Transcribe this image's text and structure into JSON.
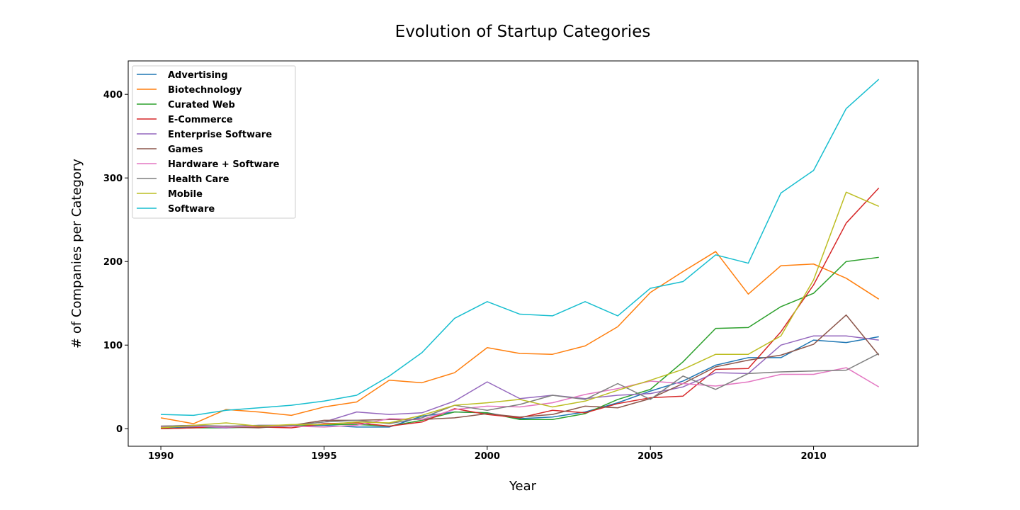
{
  "chart_data": {
    "type": "line",
    "title": "Evolution of Startup Categories",
    "xlabel": "Year",
    "ylabel": "# of Companies per Category",
    "xlim": [
      1989,
      2013.2
    ],
    "ylim": [
      -21,
      440
    ],
    "x_ticks": [
      1990,
      1995,
      2000,
      2005,
      2010
    ],
    "y_ticks": [
      0,
      100,
      200,
      300,
      400
    ],
    "grid": false,
    "legend_position": "top-left",
    "x": [
      1990,
      1991,
      1992,
      1993,
      1994,
      1995,
      1996,
      1997,
      1998,
      1999,
      2000,
      2001,
      2002,
      2003,
      2004,
      2005,
      2006,
      2007,
      2008,
      2009,
      2010,
      2011,
      2012
    ],
    "series": [
      {
        "name": "Advertising",
        "color": "#1f77b4",
        "values": [
          1,
          2,
          3,
          2,
          3,
          4,
          2,
          2,
          15,
          20,
          19,
          12,
          14,
          20,
          31,
          45,
          57,
          76,
          85,
          85,
          106,
          103,
          110
        ]
      },
      {
        "name": "Biotechnology",
        "color": "#ff7f0e",
        "values": [
          13,
          6,
          23,
          20,
          16,
          26,
          32,
          58,
          55,
          67,
          97,
          90,
          89,
          99,
          122,
          163,
          188,
          212,
          161,
          195,
          197,
          180,
          155
        ]
      },
      {
        "name": "Curated Web",
        "color": "#2ca02c",
        "values": [
          0,
          1,
          1,
          2,
          3,
          5,
          5,
          3,
          10,
          20,
          19,
          11,
          11,
          18,
          35,
          47,
          80,
          120,
          121,
          146,
          162,
          200,
          205
        ]
      },
      {
        "name": "E-Commerce",
        "color": "#d62728",
        "values": [
          0,
          1,
          3,
          2,
          1,
          6,
          7,
          3,
          8,
          24,
          17,
          13,
          22,
          19,
          30,
          37,
          39,
          71,
          72,
          116,
          172,
          246,
          288
        ]
      },
      {
        "name": "Enterprise Software",
        "color": "#9467bd",
        "values": [
          2,
          3,
          1,
          4,
          4,
          8,
          20,
          17,
          19,
          33,
          56,
          36,
          40,
          36,
          40,
          42,
          50,
          67,
          66,
          100,
          111,
          111,
          106
        ]
      },
      {
        "name": "Games",
        "color": "#8c564b",
        "values": [
          3,
          4,
          2,
          1,
          4,
          10,
          10,
          11,
          11,
          13,
          18,
          14,
          17,
          27,
          25,
          36,
          54,
          74,
          82,
          88,
          101,
          136,
          88
        ]
      },
      {
        "name": "Hardware + Software",
        "color": "#e377c2",
        "values": [
          2,
          3,
          2,
          3,
          3,
          2,
          4,
          12,
          11,
          23,
          27,
          26,
          31,
          41,
          48,
          57,
          54,
          51,
          56,
          65,
          65,
          73,
          50
        ]
      },
      {
        "name": "Health Care",
        "color": "#7f7f7f",
        "values": [
          3,
          4,
          3,
          4,
          4,
          8,
          10,
          6,
          13,
          28,
          22,
          29,
          40,
          35,
          54,
          35,
          63,
          47,
          66,
          68,
          69,
          70,
          90
        ]
      },
      {
        "name": "Mobile",
        "color": "#bcbd22",
        "values": [
          1,
          4,
          7,
          3,
          5,
          5,
          8,
          7,
          16,
          28,
          31,
          35,
          26,
          33,
          46,
          58,
          71,
          89,
          89,
          111,
          178,
          283,
          266
        ]
      },
      {
        "name": "Software",
        "color": "#17becf",
        "values": [
          17,
          16,
          22,
          25,
          28,
          33,
          40,
          63,
          91,
          132,
          152,
          137,
          135,
          152,
          135,
          168,
          176,
          208,
          198,
          282,
          309,
          383,
          418
        ]
      }
    ]
  }
}
